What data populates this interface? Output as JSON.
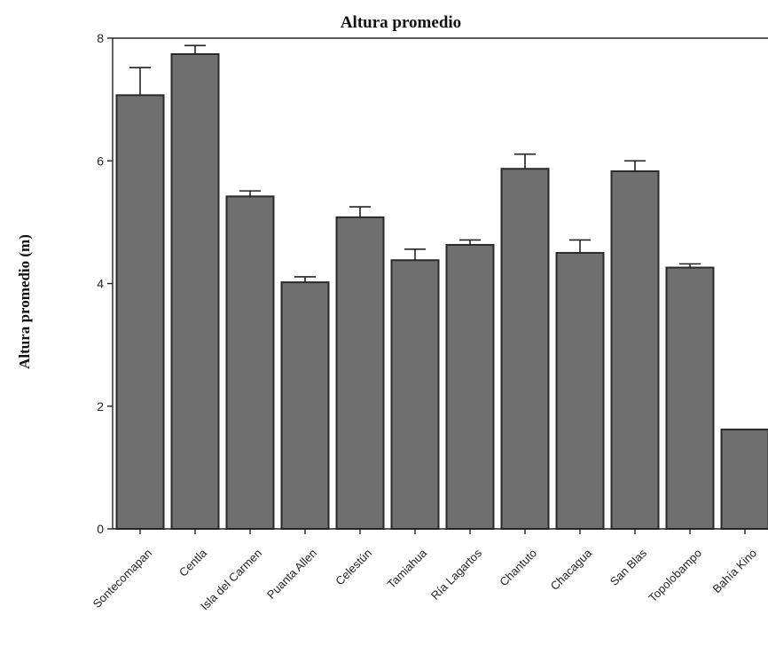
{
  "chart_data": {
    "type": "bar",
    "title": "Altura promedio",
    "ylabel": "Altura promedio (m)",
    "xlabel": "",
    "ylim": [
      0,
      8
    ],
    "yticks": [
      0,
      2,
      4,
      6,
      8
    ],
    "categories": [
      "Sontecomapan",
      "Centla",
      "Isla del Carmen",
      "Puanta Allen",
      "Celestún",
      "Tamiahua",
      "Ría Lagartos",
      "Chantuto",
      "Chacagua",
      "San Blas",
      "Topolobampo",
      "Bahía Kino"
    ],
    "values": [
      7.07,
      7.74,
      5.42,
      4.02,
      5.08,
      4.38,
      4.63,
      5.87,
      4.5,
      5.83,
      4.26,
      1.62
    ],
    "error": [
      0.45,
      0.14,
      0.09,
      0.09,
      0.17,
      0.18,
      0.08,
      0.24,
      0.21,
      0.17,
      0.06,
      0.0
    ],
    "grid": false,
    "bar_color": "#6f6f6f"
  }
}
